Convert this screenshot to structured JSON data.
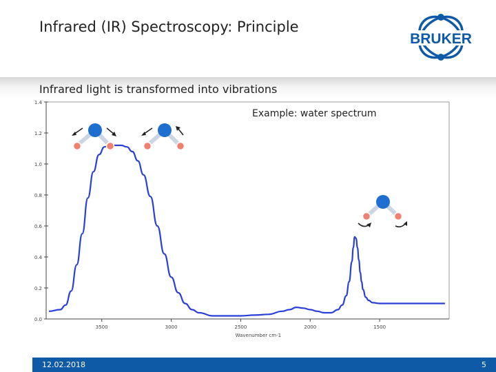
{
  "slide": {
    "title": "Infrared (IR) Spectroscopy: Principle",
    "subtitle": "Infrared light is transformed into vibrations",
    "logo_text": "BRUKER",
    "example_label": "Example: water spectrum",
    "footer_date": "12.02.2018",
    "footer_page": "5"
  },
  "colors": {
    "accent_blue": "#0e5aa7",
    "curve": "#2a3fd6",
    "oxygen": "#1f6fd1",
    "hydrogen": "#f08070"
  },
  "chart_data": {
    "type": "line",
    "xlabel": "Wavenumber cm-1",
    "ylabel": "",
    "x_reversed": true,
    "xlim": [
      3900,
      1000
    ],
    "ylim": [
      0.0,
      1.4
    ],
    "x_ticks": [
      "3500",
      "3000",
      "2500",
      "2000",
      "1500"
    ],
    "x_tick_values": [
      3500,
      3000,
      2500,
      2000,
      1500
    ],
    "y_ticks": [
      "0.0",
      "0.2",
      "0.4",
      "0.6",
      "0.8",
      "1.0",
      "1.2",
      "1.4"
    ],
    "y_tick_values": [
      0.0,
      0.2,
      0.4,
      0.6,
      0.8,
      1.0,
      1.2,
      1.4
    ],
    "series": [
      {
        "x": [
          3880,
          3800,
          3760,
          3720,
          3680,
          3640,
          3600,
          3560,
          3520,
          3480,
          3440,
          3400,
          3360,
          3320,
          3280,
          3240,
          3200,
          3150,
          3100,
          3050,
          3000,
          2950,
          2900,
          2850,
          2800,
          2700,
          2600,
          2500,
          2400,
          2300,
          2200,
          2150,
          2100,
          2050,
          2000,
          1950,
          1900,
          1850,
          1800,
          1770,
          1740,
          1720,
          1700,
          1690,
          1680,
          1670,
          1660,
          1650,
          1640,
          1630,
          1620,
          1600,
          1580,
          1550,
          1500,
          1450,
          1400,
          1300,
          1200,
          1100,
          1030
        ],
        "y": [
          0.05,
          0.06,
          0.09,
          0.18,
          0.35,
          0.55,
          0.78,
          0.95,
          1.06,
          1.11,
          1.12,
          1.12,
          1.12,
          1.11,
          1.08,
          1.02,
          0.93,
          0.79,
          0.6,
          0.42,
          0.27,
          0.17,
          0.1,
          0.06,
          0.04,
          0.02,
          0.02,
          0.02,
          0.025,
          0.03,
          0.05,
          0.06,
          0.075,
          0.07,
          0.06,
          0.05,
          0.04,
          0.04,
          0.06,
          0.09,
          0.15,
          0.24,
          0.37,
          0.46,
          0.53,
          0.52,
          0.46,
          0.38,
          0.3,
          0.24,
          0.19,
          0.14,
          0.12,
          0.105,
          0.1,
          0.1,
          0.1,
          0.1,
          0.1,
          0.1,
          0.1
        ]
      }
    ]
  }
}
